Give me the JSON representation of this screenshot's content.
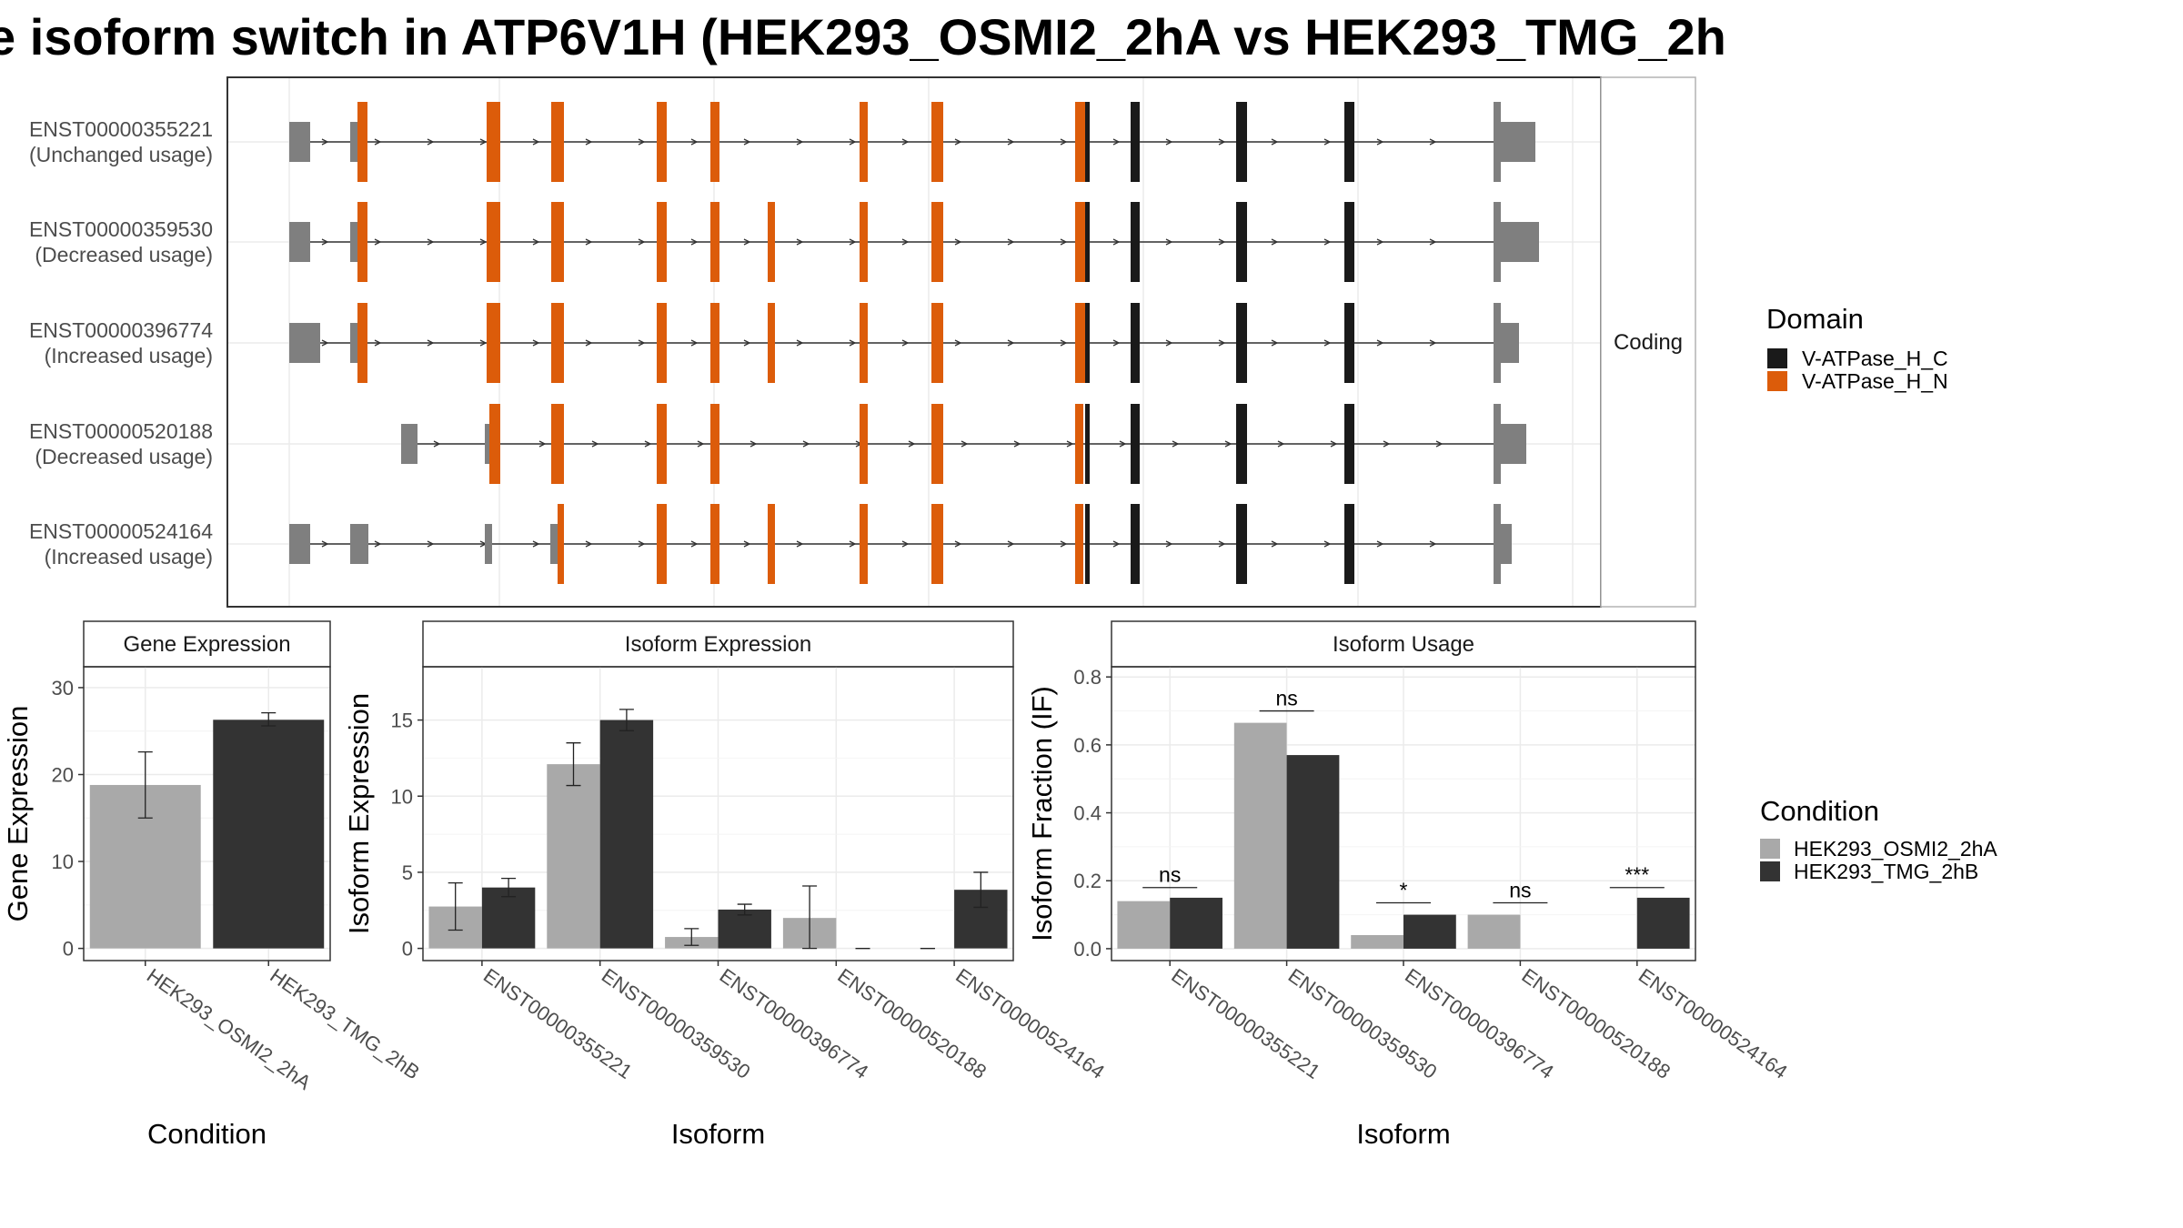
{
  "title": "e isoform switch in ATP6V1H (HEK293_OSMI2_2hA vs HEK293_TMG_2h",
  "colors": {
    "domain_C": "#1a1a1a",
    "domain_N": "#dc5c0a",
    "utr": "#7f7f7f",
    "cond_A": "#a9a9a9",
    "cond_B": "#333333"
  },
  "chart_data": [
    {
      "type": "gene-structure",
      "facet_label": "Coding",
      "legend_title": "Domain",
      "legend": [
        {
          "label": "V-ATPase_H_C",
          "color": "#1a1a1a"
        },
        {
          "label": "V-ATPase_H_N",
          "color": "#dc5c0a"
        }
      ],
      "isoforms": [
        {
          "id": "ENST00000355221",
          "status": "(Unchanged usage)"
        },
        {
          "id": "ENST00000359530",
          "status": "(Decreased usage)"
        },
        {
          "id": "ENST00000396774",
          "status": "(Increased usage)"
        },
        {
          "id": "ENST00000520188",
          "status": "(Decreased usage)"
        },
        {
          "id": "ENST00000524164",
          "status": "(Increased usage)"
        }
      ]
    },
    {
      "type": "bar",
      "facet_label": "Gene Expression",
      "xlabel": "Condition",
      "ylabel": "Gene Expression",
      "ylim": [
        -1.4,
        32.4
      ],
      "yticks": [
        0,
        10,
        20,
        30
      ],
      "categories": [
        "HEK293_OSMI2_2hA",
        "HEK293_TMG_2hB"
      ],
      "values": [
        18.8,
        26.3
      ],
      "err_low": [
        15.0,
        25.6
      ],
      "err_high": [
        22.6,
        27.1
      ]
    },
    {
      "type": "bar",
      "facet_label": "Isoform Expression",
      "xlabel": "Isoform",
      "ylabel": "Isoform Expression",
      "ylim": [
        -0.8,
        18.5
      ],
      "yticks": [
        0,
        5,
        10,
        15
      ],
      "categories": [
        "ENST00000355221",
        "ENST00000359530",
        "ENST00000396774",
        "ENST00000520188",
        "ENST00000524164"
      ],
      "series": [
        {
          "name": "HEK293_OSMI2_2hA",
          "values": [
            2.75,
            12.1,
            0.75,
            2.0,
            0.0
          ],
          "err_low": [
            1.2,
            10.7,
            0.2,
            0.0,
            0.0
          ],
          "err_high": [
            4.3,
            13.5,
            1.3,
            4.1,
            0.0
          ]
        },
        {
          "name": "HEK293_TMG_2hB",
          "values": [
            4.0,
            15.0,
            2.55,
            0.0,
            3.85
          ],
          "err_low": [
            3.4,
            14.3,
            2.2,
            0.0,
            2.7
          ],
          "err_high": [
            4.6,
            15.7,
            2.9,
            0.0,
            5.0
          ]
        }
      ]
    },
    {
      "type": "bar",
      "facet_label": "Isoform Usage",
      "xlabel": "Isoform",
      "ylabel": "Isoform Fraction (IF)",
      "ylim": [
        -0.035,
        0.83
      ],
      "yticks": [
        0.0,
        0.2,
        0.4,
        0.6,
        0.8
      ],
      "ytick_labels": [
        "0.0",
        "0.2",
        "0.4",
        "0.6",
        "0.8"
      ],
      "categories": [
        "ENST00000355221",
        "ENST00000359530",
        "ENST00000396774",
        "ENST00000520188",
        "ENST00000524164"
      ],
      "series": [
        {
          "name": "HEK293_OSMI2_2hA",
          "values": [
            0.14,
            0.665,
            0.04,
            0.1,
            0.0
          ]
        },
        {
          "name": "HEK293_TMG_2hB",
          "values": [
            0.15,
            0.57,
            0.1,
            0.0,
            0.15
          ]
        }
      ],
      "significance": [
        "ns",
        "ns",
        "*",
        "ns",
        "***"
      ],
      "significance_y": [
        0.18,
        0.7,
        0.135,
        0.135,
        0.18
      ],
      "legend_title": "Condition",
      "legend": [
        {
          "label": "HEK293_OSMI2_2hA",
          "color": "#a9a9a9"
        },
        {
          "label": "HEK293_TMG_2hB",
          "color": "#333333"
        }
      ]
    }
  ]
}
